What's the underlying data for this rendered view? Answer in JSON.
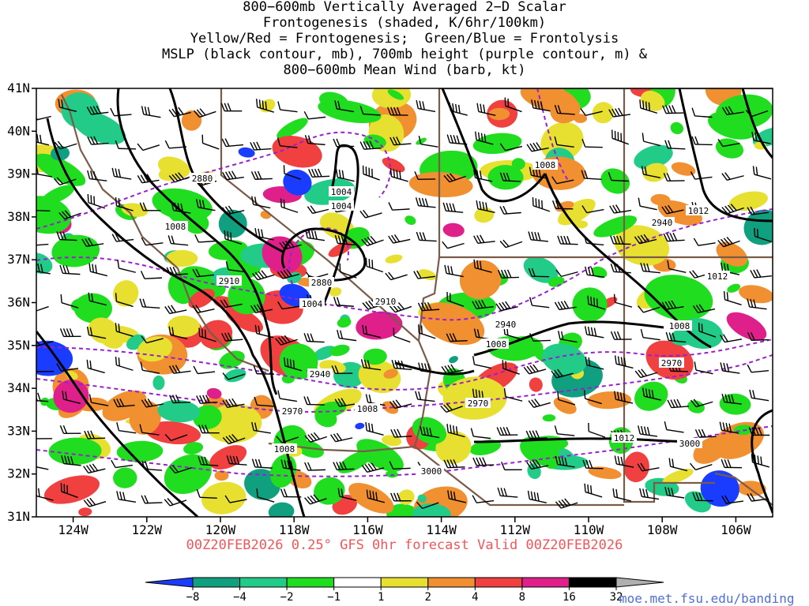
{
  "title_lines": [
    "800−600mb Vertically Averaged 2−D Scalar",
    "Frontogenesis (shaded, K/6hr/100km)",
    "Yellow/Red = Frontogenesis;  Green/Blue = Frontolysis",
    "MSLP (black contour, mb), 700mb height (purple contour, m) &",
    "800−600mb Mean Wind (barb, kt)"
  ],
  "subtitle": "00Z20FEB2026 0.25° GFS 0hr forecast Valid 00Z20FEB2026",
  "credit": "moe.met.fsu.edu/banding",
  "chart_data": {
    "type": "heatmap",
    "x_axis": {
      "ticks": [
        "124W",
        "122W",
        "120W",
        "118W",
        "116W",
        "114W",
        "112W",
        "110W",
        "108W",
        "106W"
      ],
      "values": [
        -124,
        -122,
        -120,
        -118,
        -116,
        -114,
        -112,
        -110,
        -108,
        -106
      ],
      "range": [
        -125,
        -105
      ]
    },
    "y_axis": {
      "ticks": [
        "31N",
        "32N",
        "33N",
        "34N",
        "35N",
        "36N",
        "37N",
        "38N",
        "39N",
        "40N",
        "41N"
      ],
      "values": [
        31,
        32,
        33,
        34,
        35,
        36,
        37,
        38,
        39,
        40,
        41
      ],
      "range": [
        31,
        41
      ]
    },
    "colorbar": {
      "labels": [
        "−8",
        "−4",
        "−2",
        "−1",
        "1",
        "2",
        "4",
        "8",
        "16",
        "32"
      ],
      "colors": [
        "#1a3cff",
        "#10a080",
        "#22cc88",
        "#20dd20",
        "#ffffff",
        "#e8e030",
        "#f09030",
        "#f04040",
        "#e0208a",
        "#000000",
        "#b0b0b0"
      ]
    },
    "mslp_contour_labels": [
      "1004",
      "1004",
      "1004",
      "1008",
      "1008",
      "1008",
      "1008",
      "1008",
      "1008",
      "1012",
      "1012",
      "1012"
    ],
    "height_contour_labels": [
      "2880",
      "2880",
      "2910",
      "2910",
      "2940",
      "2940",
      "2940",
      "2970",
      "2970",
      "2970",
      "3000",
      "3000"
    ],
    "colors": {
      "mslp": "#000000",
      "height": "#9a1fd0",
      "borders": "#7a5a48",
      "wind": "#000000"
    }
  }
}
